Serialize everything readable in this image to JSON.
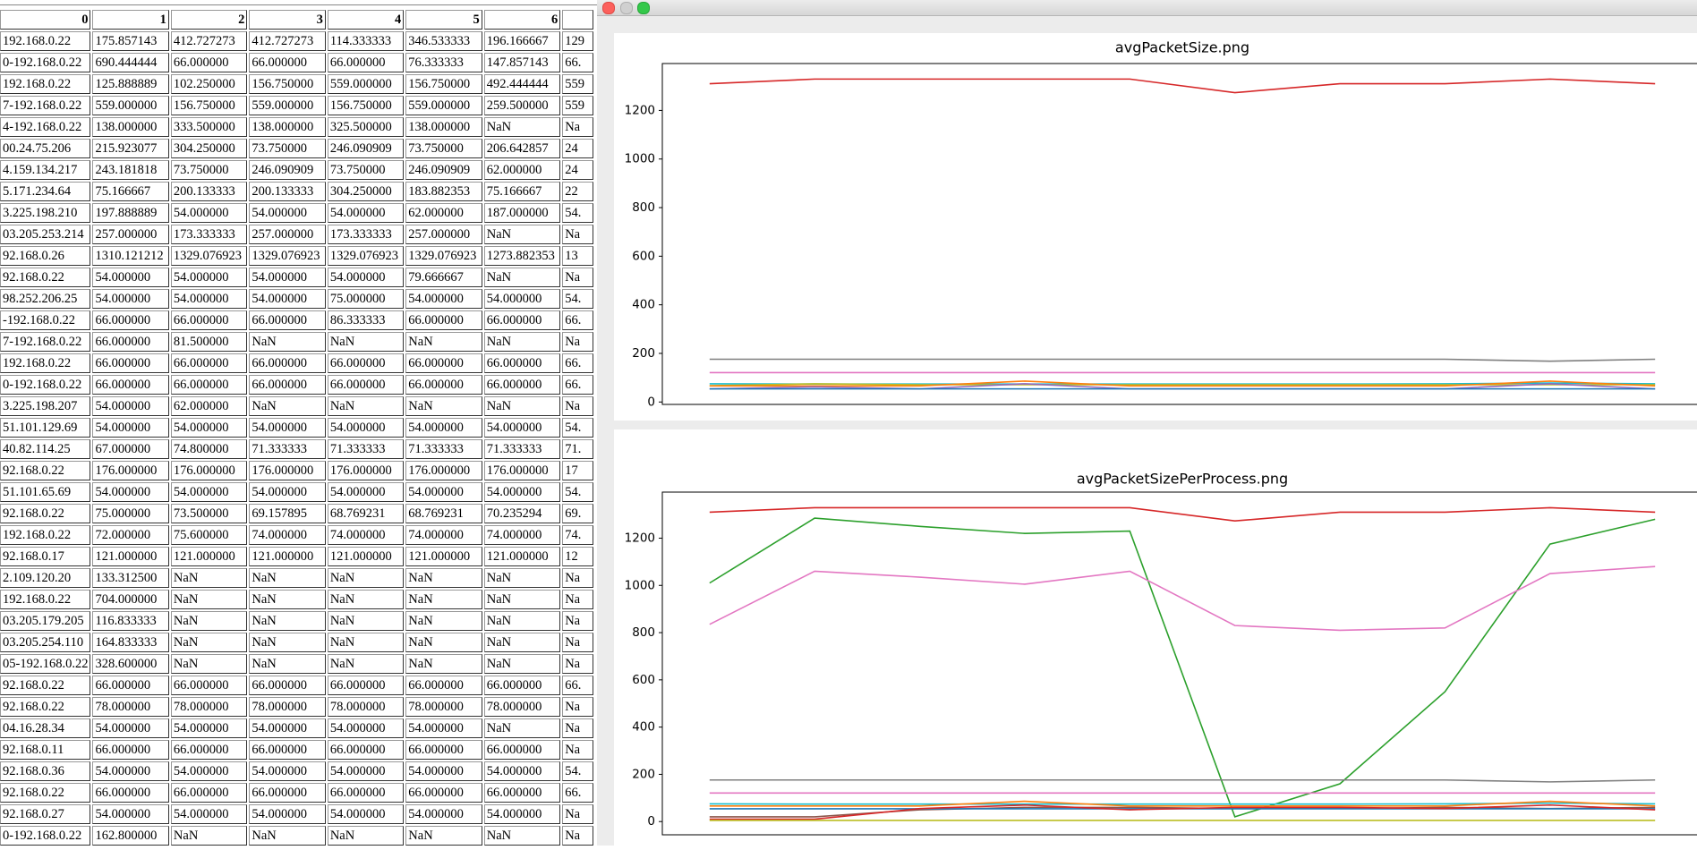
{
  "table": {
    "columns": [
      "0",
      "1",
      "2",
      "3",
      "4",
      "5",
      "6"
    ],
    "rows": [
      [
        "192.168.0.22",
        "175.857143",
        "412.727273",
        "412.727273",
        "114.333333",
        "346.533333",
        "196.166667",
        "129"
      ],
      [
        "0-192.168.0.22",
        "690.444444",
        "66.000000",
        "66.000000",
        "66.000000",
        "76.333333",
        "147.857143",
        "66."
      ],
      [
        "192.168.0.22",
        "125.888889",
        "102.250000",
        "156.750000",
        "559.000000",
        "156.750000",
        "492.444444",
        "559"
      ],
      [
        "7-192.168.0.22",
        "559.000000",
        "156.750000",
        "559.000000",
        "156.750000",
        "559.000000",
        "259.500000",
        "559"
      ],
      [
        "4-192.168.0.22",
        "138.000000",
        "333.500000",
        "138.000000",
        "325.500000",
        "138.000000",
        "NaN",
        "Na"
      ],
      [
        "00.24.75.206",
        "215.923077",
        "304.250000",
        "73.750000",
        "246.090909",
        "73.750000",
        "206.642857",
        "24"
      ],
      [
        "4.159.134.217",
        "243.181818",
        "73.750000",
        "246.090909",
        "73.750000",
        "246.090909",
        "62.000000",
        "24"
      ],
      [
        "5.171.234.64",
        "75.166667",
        "200.133333",
        "200.133333",
        "304.250000",
        "183.882353",
        "75.166667",
        "22"
      ],
      [
        "3.225.198.210",
        "197.888889",
        "54.000000",
        "54.000000",
        "54.000000",
        "62.000000",
        "187.000000",
        "54."
      ],
      [
        "03.205.253.214",
        "257.000000",
        "173.333333",
        "257.000000",
        "173.333333",
        "257.000000",
        "NaN",
        "Na"
      ],
      [
        "92.168.0.26",
        "1310.121212",
        "1329.076923",
        "1329.076923",
        "1329.076923",
        "1329.076923",
        "1273.882353",
        "13"
      ],
      [
        "92.168.0.22",
        "54.000000",
        "54.000000",
        "54.000000",
        "54.000000",
        "79.666667",
        "NaN",
        "Na"
      ],
      [
        "98.252.206.25",
        "54.000000",
        "54.000000",
        "54.000000",
        "75.000000",
        "54.000000",
        "54.000000",
        "54."
      ],
      [
        "-192.168.0.22",
        "66.000000",
        "66.000000",
        "66.000000",
        "86.333333",
        "66.000000",
        "66.000000",
        "66."
      ],
      [
        "7-192.168.0.22",
        "66.000000",
        "81.500000",
        "NaN",
        "NaN",
        "NaN",
        "NaN",
        "Na"
      ],
      [
        "192.168.0.22",
        "66.000000",
        "66.000000",
        "66.000000",
        "66.000000",
        "66.000000",
        "66.000000",
        "66."
      ],
      [
        "0-192.168.0.22",
        "66.000000",
        "66.000000",
        "66.000000",
        "66.000000",
        "66.000000",
        "66.000000",
        "66."
      ],
      [
        "3.225.198.207",
        "54.000000",
        "62.000000",
        "NaN",
        "NaN",
        "NaN",
        "NaN",
        "Na"
      ],
      [
        "51.101.129.69",
        "54.000000",
        "54.000000",
        "54.000000",
        "54.000000",
        "54.000000",
        "54.000000",
        "54."
      ],
      [
        "40.82.114.25",
        "67.000000",
        "74.800000",
        "71.333333",
        "71.333333",
        "71.333333",
        "71.333333",
        "71."
      ],
      [
        "92.168.0.22",
        "176.000000",
        "176.000000",
        "176.000000",
        "176.000000",
        "176.000000",
        "176.000000",
        "17"
      ],
      [
        "51.101.65.69",
        "54.000000",
        "54.000000",
        "54.000000",
        "54.000000",
        "54.000000",
        "54.000000",
        "54."
      ],
      [
        "92.168.0.22",
        "75.000000",
        "73.500000",
        "69.157895",
        "68.769231",
        "68.769231",
        "70.235294",
        "69."
      ],
      [
        "192.168.0.22",
        "72.000000",
        "75.600000",
        "74.000000",
        "74.000000",
        "74.000000",
        "74.000000",
        "74."
      ],
      [
        "92.168.0.17",
        "121.000000",
        "121.000000",
        "121.000000",
        "121.000000",
        "121.000000",
        "121.000000",
        "12"
      ],
      [
        "2.109.120.20",
        "133.312500",
        "NaN",
        "NaN",
        "NaN",
        "NaN",
        "NaN",
        "Na"
      ],
      [
        "192.168.0.22",
        "704.000000",
        "NaN",
        "NaN",
        "NaN",
        "NaN",
        "NaN",
        "Na"
      ],
      [
        "03.205.179.205",
        "116.833333",
        "NaN",
        "NaN",
        "NaN",
        "NaN",
        "NaN",
        "Na"
      ],
      [
        "03.205.254.110",
        "164.833333",
        "NaN",
        "NaN",
        "NaN",
        "NaN",
        "NaN",
        "Na"
      ],
      [
        "05-192.168.0.22",
        "328.600000",
        "NaN",
        "NaN",
        "NaN",
        "NaN",
        "NaN",
        "Na"
      ],
      [
        "92.168.0.22",
        "66.000000",
        "66.000000",
        "66.000000",
        "66.000000",
        "66.000000",
        "66.000000",
        "66."
      ],
      [
        "92.168.0.22",
        "78.000000",
        "78.000000",
        "78.000000",
        "78.000000",
        "78.000000",
        "78.000000",
        "Na"
      ],
      [
        "04.16.28.34",
        "54.000000",
        "54.000000",
        "54.000000",
        "54.000000",
        "54.000000",
        "NaN",
        "Na"
      ],
      [
        "92.168.0.11",
        "66.000000",
        "66.000000",
        "66.000000",
        "66.000000",
        "66.000000",
        "66.000000",
        "Na"
      ],
      [
        "92.168.0.36",
        "54.000000",
        "54.000000",
        "54.000000",
        "54.000000",
        "54.000000",
        "54.000000",
        "54."
      ],
      [
        "92.168.0.22",
        "66.000000",
        "66.000000",
        "66.000000",
        "66.000000",
        "66.000000",
        "66.000000",
        "66."
      ],
      [
        "92.168.0.27",
        "54.000000",
        "54.000000",
        "54.000000",
        "54.000000",
        "54.000000",
        "54.000000",
        "Na"
      ],
      [
        "0-192.168.0.22",
        "162.800000",
        "NaN",
        "NaN",
        "NaN",
        "NaN",
        "NaN",
        "Na"
      ]
    ]
  },
  "chart_data": [
    {
      "type": "line",
      "title": "avgPacketSize.png",
      "x": [
        0,
        1,
        2,
        3,
        4,
        5,
        6,
        7,
        8,
        9
      ],
      "xlim": [
        -0.45,
        9.45
      ],
      "ylim": [
        -10,
        1393
      ],
      "yticks": [
        0,
        200,
        400,
        600,
        800,
        1000,
        1200
      ],
      "series": [
        {
          "color": "#d62728",
          "values": [
            1310,
            1329,
            1329,
            1329,
            1329,
            1273,
            1310,
            1310,
            1329,
            1310
          ]
        },
        {
          "color": "#7f7f7f",
          "values": [
            176,
            176,
            176,
            176,
            176,
            176,
            176,
            176,
            168,
            176
          ]
        },
        {
          "color": "#e377c2",
          "values": [
            121,
            121,
            121,
            121,
            121,
            121,
            121,
            121,
            121,
            121
          ]
        },
        {
          "color": "#17becf",
          "values": [
            75,
            74,
            74,
            74,
            74,
            74,
            74,
            75,
            78,
            75
          ]
        },
        {
          "color": "#bcbd22",
          "values": [
            67,
            75,
            71,
            71,
            71,
            71,
            71,
            71,
            71,
            71
          ]
        },
        {
          "color": "#ff7f0e",
          "values": [
            66,
            66,
            66,
            86,
            66,
            66,
            66,
            66,
            86,
            66
          ]
        },
        {
          "color": "#9467bd",
          "values": [
            54,
            62,
            54,
            75,
            54,
            54,
            54,
            54,
            75,
            54
          ]
        },
        {
          "color": "#1f77b4",
          "values": [
            54,
            54,
            54,
            54,
            54,
            54,
            54,
            54,
            54,
            54
          ]
        }
      ]
    },
    {
      "type": "line",
      "title": "avgPacketSizePerProcess.png",
      "x": [
        0,
        1,
        2,
        3,
        4,
        5,
        6,
        7,
        8,
        9
      ],
      "xlim": [
        -0.45,
        9.45
      ],
      "ylim": [
        -56,
        1395
      ],
      "yticks": [
        0,
        200,
        400,
        600,
        800,
        1000,
        1200
      ],
      "series": [
        {
          "color": "#d62728",
          "values": [
            1310,
            1329,
            1329,
            1329,
            1329,
            1273,
            1310,
            1310,
            1329,
            1310
          ]
        },
        {
          "color": "#2ca02c",
          "values": [
            1010,
            1285,
            1250,
            1220,
            1230,
            20,
            160,
            550,
            1175,
            1280
          ]
        },
        {
          "color": "#e377c2",
          "values": [
            835,
            1060,
            1035,
            1005,
            1060,
            830,
            810,
            820,
            1050,
            1080
          ]
        },
        {
          "color": "#7f7f7f",
          "values": [
            176,
            176,
            176,
            176,
            176,
            176,
            176,
            176,
            168,
            176
          ]
        },
        {
          "color": "#e377c2",
          "values": [
            121,
            121,
            121,
            121,
            121,
            121,
            121,
            121,
            121,
            121
          ]
        },
        {
          "color": "#17becf",
          "values": [
            75,
            74,
            74,
            74,
            74,
            74,
            74,
            75,
            78,
            75
          ]
        },
        {
          "color": "#ff7f0e",
          "values": [
            66,
            66,
            66,
            86,
            66,
            66,
            66,
            66,
            86,
            66
          ]
        },
        {
          "color": "#8c564b",
          "values": [
            20,
            20,
            50,
            60,
            60,
            55,
            55,
            60,
            55,
            60
          ]
        },
        {
          "color": "#1f77b4",
          "values": [
            54,
            54,
            54,
            54,
            54,
            54,
            54,
            54,
            54,
            54
          ]
        },
        {
          "color": "#d62728",
          "values": [
            10,
            10,
            55,
            70,
            50,
            60,
            60,
            55,
            70,
            50
          ]
        },
        {
          "color": "#bcbd22",
          "values": [
            5,
            5,
            5,
            5,
            5,
            5,
            5,
            5,
            5,
            5
          ]
        }
      ]
    }
  ]
}
